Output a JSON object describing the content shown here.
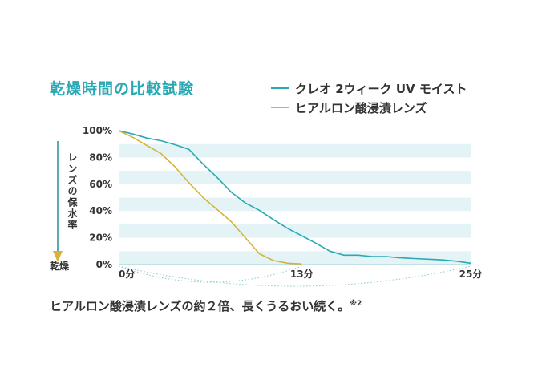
{
  "title": "乾燥時間の比較試験",
  "legend": [
    {
      "label": "クレオ 2ウィーク UV モイスト",
      "color": "#2aa9b4"
    },
    {
      "label": "ヒアルロン酸浸漬レンズ",
      "color": "#d9b23a"
    }
  ],
  "y_axis": {
    "label": "レンズの保水率",
    "bottom_label": "乾燥"
  },
  "caption": {
    "text": "ヒアルロン酸浸漬レンズの約２倍、長くうるおい続く。",
    "note": "※2"
  },
  "chart_data": {
    "type": "line",
    "title": "乾燥時間の比較試験",
    "xlabel": "",
    "ylabel": "レンズの保水率",
    "xlim": [
      0,
      25
    ],
    "ylim": [
      0,
      100
    ],
    "x_ticks": [
      {
        "value": 0,
        "label": "0分"
      },
      {
        "value": 13,
        "label": "13分"
      },
      {
        "value": 25,
        "label": "25分"
      }
    ],
    "y_ticks": [
      {
        "value": 0,
        "label": "0%"
      },
      {
        "value": 20,
        "label": "20%"
      },
      {
        "value": 40,
        "label": "40%"
      },
      {
        "value": 60,
        "label": "60%"
      },
      {
        "value": 80,
        "label": "80%"
      },
      {
        "value": 100,
        "label": "100%"
      }
    ],
    "grid": "horizontal bands",
    "legend_position": "top-right",
    "series": [
      {
        "name": "クレオ 2ウィーク UV モイスト",
        "color": "#2aa9b4",
        "points": [
          [
            0,
            100
          ],
          [
            1,
            97.5
          ],
          [
            2,
            94.5
          ],
          [
            3,
            92.5
          ],
          [
            4,
            89.5
          ],
          [
            5,
            86
          ],
          [
            6,
            75
          ],
          [
            7,
            65
          ],
          [
            8,
            54
          ],
          [
            9,
            46
          ],
          [
            10,
            40.5
          ],
          [
            11,
            33.5
          ],
          [
            12,
            27
          ],
          [
            13,
            21.5
          ],
          [
            14,
            16
          ],
          [
            15,
            10
          ],
          [
            16,
            7
          ],
          [
            17,
            7
          ],
          [
            18,
            6
          ],
          [
            19,
            6
          ],
          [
            20,
            5
          ],
          [
            21,
            4.5
          ],
          [
            22,
            4
          ],
          [
            23,
            3.5
          ],
          [
            24,
            2.5
          ],
          [
            25,
            1
          ]
        ]
      },
      {
        "name": "ヒアルロン酸浸漬レンズ",
        "color": "#d9b23a",
        "points": [
          [
            0,
            100
          ],
          [
            1,
            95
          ],
          [
            2,
            89
          ],
          [
            3,
            83
          ],
          [
            4,
            73
          ],
          [
            5,
            61
          ],
          [
            6,
            50
          ],
          [
            7,
            41
          ],
          [
            8,
            32
          ],
          [
            9,
            20
          ],
          [
            10,
            8
          ],
          [
            11,
            3
          ],
          [
            12,
            1
          ],
          [
            13,
            0.5
          ]
        ]
      }
    ]
  }
}
